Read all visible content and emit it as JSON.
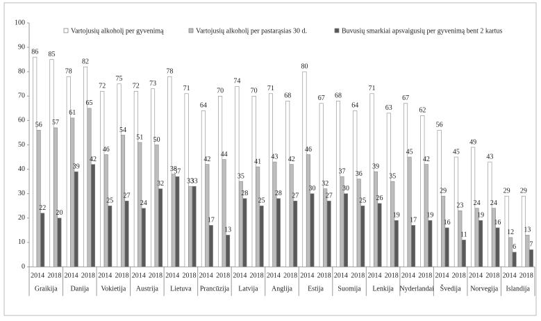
{
  "chart_data": {
    "type": "grouped-bar",
    "groups": [
      "Graikija",
      "Danija",
      "Vokietija",
      "Austrija",
      "Lietuva",
      "Prancūzija",
      "Latvija",
      "Anglija",
      "Estija",
      "Suomija",
      "Lenkija",
      "Nyderlandai",
      "Švedija",
      "Norvegija",
      "Islandija"
    ],
    "categories": [
      "2014",
      "2018",
      "2014",
      "2018",
      "2014",
      "2018",
      "2014",
      "2018",
      "2014",
      "2018",
      "2014",
      "2018",
      "2014",
      "2018",
      "2014",
      "2018",
      "2014",
      "2018",
      "2014",
      "2018",
      "2014",
      "2018",
      "2014",
      "2018",
      "2014",
      "2018",
      "2014",
      "2018",
      "2014",
      "2018"
    ],
    "series": [
      {
        "name": "Vartojusių alkoholį per gyvenimą",
        "color": "#ffffff",
        "values": [
          86,
          85,
          78,
          82,
          72,
          75,
          72,
          73,
          78,
          71,
          64,
          70,
          74,
          70,
          71,
          68,
          80,
          67,
          68,
          64,
          71,
          63,
          67,
          62,
          56,
          45,
          49,
          43,
          29,
          29
        ]
      },
      {
        "name": "Vartojusių alkoholį per pastarąsias  30 d.",
        "color": "#bdbdbd",
        "values": [
          56,
          57,
          61,
          65,
          46,
          54,
          51,
          50,
          38,
          33,
          42,
          44,
          35,
          41,
          43,
          42,
          46,
          32,
          37,
          36,
          39,
          35,
          45,
          42,
          29,
          23,
          24,
          24,
          12,
          13
        ]
      },
      {
        "name": "Buvusių smarkiai apsvaigusių per gyvenimą bent 2 kartus",
        "color": "#595959",
        "values": [
          22,
          20,
          39,
          42,
          25,
          27,
          24,
          32,
          37,
          33,
          17,
          13,
          28,
          25,
          28,
          27,
          30,
          27,
          30,
          25,
          26,
          19,
          17,
          19,
          16,
          11,
          19,
          16,
          6,
          7
        ]
      }
    ],
    "ylim": [
      0,
      100
    ],
    "yticks": [
      0,
      10,
      20,
      30,
      40,
      50,
      60,
      70,
      80,
      90,
      100
    ],
    "grid": false,
    "legend": "top"
  }
}
